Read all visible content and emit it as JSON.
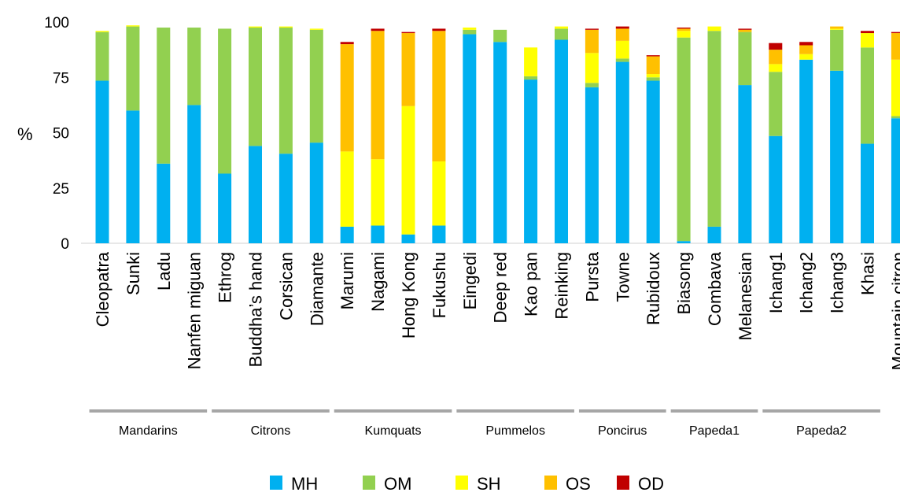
{
  "chart_data": {
    "type": "bar",
    "stacked": true,
    "ylabel": "%",
    "ylim": [
      0,
      100
    ],
    "yticks": [
      0,
      25,
      50,
      75,
      100
    ],
    "grid": false,
    "legend_position": "bottom",
    "categories": [
      "Cleopatra",
      "Sunki",
      "Ladu",
      "Nanfen miguan",
      "Ethrog",
      "Buddha’s hand",
      "Corsican",
      "Diamante",
      "Marumi",
      "Nagami",
      "Hong Kong",
      "Fukushu",
      "Eingedi",
      "Deep red",
      "Kao pan",
      "Reinking",
      "Pursta",
      "Towne",
      "Rubidoux",
      "Biasong",
      "Combava",
      "Melanesian",
      "Ichang1",
      "Ichang2",
      "Ichang3",
      "Khasi",
      "Mountain citron"
    ],
    "groups": [
      {
        "label": "Mandarins",
        "count": 4
      },
      {
        "label": "Citrons",
        "count": 4
      },
      {
        "label": "Kumquats",
        "count": 4
      },
      {
        "label": "Pummelos",
        "count": 4
      },
      {
        "label": "Poncirus",
        "count": 3
      },
      {
        "label": "Papeda1",
        "count": 3
      },
      {
        "label": "Papeda2",
        "count": 4
      }
    ],
    "series": [
      {
        "name": "MH",
        "color": "#00b0f0",
        "values": [
          73.5,
          60,
          36,
          62.5,
          31.5,
          44,
          40.5,
          45.5,
          7.5,
          8,
          4,
          8,
          94.5,
          91,
          74,
          92,
          70.5,
          82,
          73.5,
          1,
          7.5,
          71.5,
          48.5,
          83,
          78,
          45,
          56.5
        ]
      },
      {
        "name": "OM",
        "color": "#92d050",
        "values": [
          22,
          38,
          61.5,
          35,
          65.5,
          53.5,
          57,
          51,
          0,
          0,
          0,
          0,
          2,
          5.5,
          1.5,
          5,
          2,
          1.5,
          1.5,
          92,
          88.5,
          24,
          29,
          0,
          18.5,
          43.5,
          1
        ]
      },
      {
        "name": "SH",
        "color": "#ffff00",
        "values": [
          0.5,
          0.5,
          0,
          0,
          0,
          0.5,
          0.5,
          0.5,
          34,
          30,
          58,
          29,
          1,
          0,
          13,
          1,
          13.5,
          8,
          1.5,
          3,
          2,
          0,
          3.5,
          2.5,
          0.5,
          6.5,
          25.5
        ]
      },
      {
        "name": "OS",
        "color": "#ffc000",
        "values": [
          0,
          0,
          0,
          0,
          0,
          0,
          0,
          0,
          48.5,
          58,
          33,
          59,
          0,
          0,
          0,
          0,
          10.5,
          5.5,
          8,
          1,
          0,
          1,
          6.5,
          4,
          1,
          0,
          12
        ]
      },
      {
        "name": "OD",
        "color": "#c00000",
        "values": [
          0,
          0,
          0,
          0,
          0,
          0,
          0,
          0,
          1,
          1,
          0.5,
          1,
          0,
          0,
          0,
          0,
          0.5,
          1,
          0.5,
          0.5,
          0,
          0.5,
          3,
          1.5,
          0,
          1,
          0.5
        ]
      }
    ]
  }
}
